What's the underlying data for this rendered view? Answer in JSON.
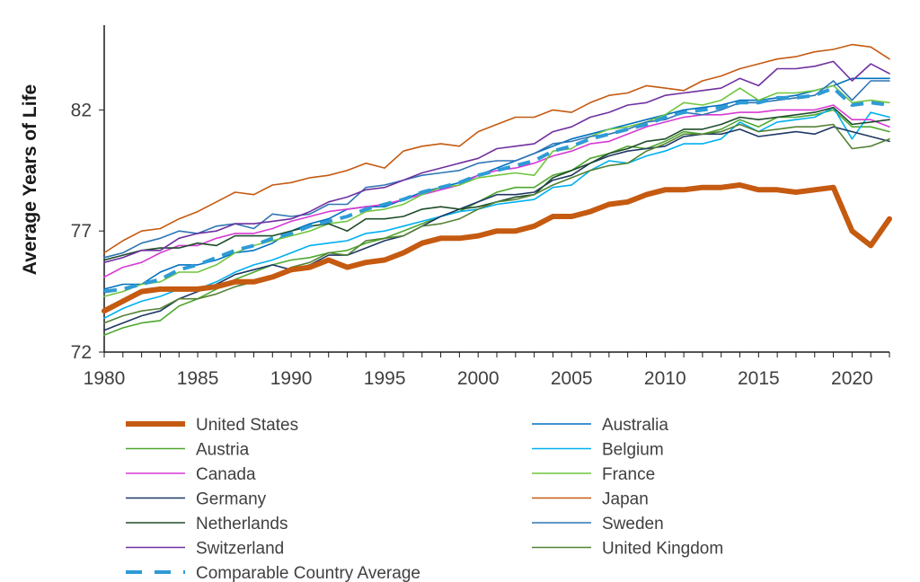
{
  "chart_data": {
    "type": "line",
    "title": "",
    "xlabel": "",
    "ylabel": "Average Years of Life",
    "xlim": [
      1980,
      2022
    ],
    "ylim": [
      72,
      85.5
    ],
    "x_ticks": [
      1980,
      1985,
      1990,
      1995,
      2000,
      2005,
      2010,
      2015,
      2020
    ],
    "y_ticks": [
      72,
      77,
      82
    ],
    "grid": false,
    "legend_position": "bottom",
    "years": [
      1980,
      1981,
      1982,
      1983,
      1984,
      1985,
      1986,
      1987,
      1988,
      1989,
      1990,
      1991,
      1992,
      1993,
      1994,
      1995,
      1996,
      1997,
      1998,
      1999,
      2000,
      2001,
      2002,
      2003,
      2004,
      2005,
      2006,
      2007,
      2008,
      2009,
      2010,
      2011,
      2012,
      2013,
      2014,
      2015,
      2016,
      2017,
      2018,
      2019,
      2020,
      2021,
      2022
    ],
    "series": [
      {
        "name": "United States",
        "color": "#c55a11",
        "width": 6,
        "dash": "",
        "values": [
          73.7,
          74.1,
          74.5,
          74.6,
          74.6,
          74.6,
          74.7,
          74.9,
          74.9,
          75.1,
          75.4,
          75.5,
          75.8,
          75.5,
          75.7,
          75.8,
          76.1,
          76.5,
          76.7,
          76.7,
          76.8,
          77.0,
          77.0,
          77.2,
          77.6,
          77.6,
          77.8,
          78.1,
          78.2,
          78.5,
          78.7,
          78.7,
          78.8,
          78.8,
          78.9,
          78.7,
          78.7,
          78.6,
          78.7,
          78.8,
          77.0,
          76.4,
          77.5
        ]
      },
      {
        "name": "Australia",
        "color": "#0070c0",
        "width": 1.6,
        "dash": "",
        "values": [
          74.6,
          74.8,
          74.8,
          75.3,
          75.6,
          75.6,
          75.8,
          76.1,
          76.2,
          76.5,
          77.0,
          77.3,
          77.5,
          77.9,
          78.0,
          78.0,
          78.3,
          78.6,
          78.8,
          79.0,
          79.3,
          79.6,
          79.9,
          80.2,
          80.5,
          80.8,
          81.0,
          81.2,
          81.4,
          81.6,
          81.8,
          82.0,
          82.1,
          82.2,
          82.4,
          82.4,
          82.5,
          82.6,
          82.8,
          83.0,
          83.3,
          83.3,
          83.3
        ]
      },
      {
        "name": "Austria",
        "color": "#4ea72e",
        "width": 1.6,
        "dash": "",
        "values": [
          72.7,
          73.0,
          73.2,
          73.3,
          73.9,
          74.2,
          74.6,
          75.0,
          75.3,
          75.6,
          75.8,
          75.9,
          76.1,
          76.2,
          76.5,
          76.7,
          77.0,
          77.3,
          77.6,
          77.8,
          78.2,
          78.6,
          78.8,
          78.8,
          79.3,
          79.5,
          80.0,
          80.2,
          80.5,
          80.4,
          80.7,
          81.1,
          81.0,
          81.2,
          81.6,
          81.3,
          81.7,
          81.7,
          81.8,
          82.0,
          81.3,
          81.3,
          81.1
        ]
      },
      {
        "name": "Belgium",
        "color": "#00b0f0",
        "width": 1.6,
        "dash": "",
        "values": [
          73.4,
          73.8,
          74.1,
          74.3,
          74.6,
          74.6,
          74.9,
          75.3,
          75.6,
          75.8,
          76.1,
          76.4,
          76.5,
          76.6,
          76.9,
          77.0,
          77.2,
          77.4,
          77.6,
          77.8,
          77.9,
          78.1,
          78.2,
          78.3,
          78.8,
          78.9,
          79.5,
          79.9,
          79.8,
          80.1,
          80.3,
          80.6,
          80.6,
          80.8,
          81.5,
          81.1,
          81.5,
          81.6,
          81.7,
          82.1,
          80.8,
          81.9,
          81.7
        ]
      },
      {
        "name": "Canada",
        "color": "#d63ad3",
        "width": 1.6,
        "dash": "",
        "values": [
          75.1,
          75.5,
          75.7,
          76.1,
          76.4,
          76.4,
          76.7,
          76.9,
          76.9,
          77.1,
          77.4,
          77.6,
          77.8,
          77.9,
          78.0,
          78.1,
          78.3,
          78.5,
          78.7,
          78.9,
          79.3,
          79.5,
          79.6,
          79.8,
          80.1,
          80.3,
          80.6,
          80.7,
          81.0,
          81.3,
          81.5,
          81.7,
          81.8,
          81.8,
          81.9,
          81.9,
          82.0,
          82.0,
          82.0,
          82.2,
          81.6,
          81.6,
          81.3
        ]
      },
      {
        "name": "France",
        "color": "#70c63f",
        "width": 1.6,
        "dash": "",
        "values": [
          74.3,
          74.5,
          74.8,
          74.9,
          75.3,
          75.3,
          75.6,
          76.1,
          76.4,
          76.6,
          76.8,
          77.0,
          77.3,
          77.4,
          77.8,
          77.9,
          78.1,
          78.5,
          78.8,
          78.9,
          79.2,
          79.3,
          79.4,
          79.3,
          80.3,
          80.4,
          80.9,
          81.2,
          81.3,
          81.5,
          81.8,
          82.3,
          82.2,
          82.4,
          82.9,
          82.4,
          82.7,
          82.7,
          82.8,
          83.0,
          82.3,
          82.4,
          82.3
        ]
      },
      {
        "name": "Germany",
        "color": "#1f3864",
        "width": 1.6,
        "dash": "",
        "values": [
          72.9,
          73.2,
          73.5,
          73.7,
          74.2,
          74.5,
          74.8,
          75.2,
          75.4,
          75.6,
          75.4,
          75.6,
          76.0,
          76.0,
          76.3,
          76.6,
          76.8,
          77.2,
          77.6,
          77.9,
          78.2,
          78.5,
          78.5,
          78.6,
          79.1,
          79.3,
          79.8,
          80.1,
          80.3,
          80.4,
          80.5,
          80.9,
          81.0,
          81.0,
          81.2,
          80.9,
          81.0,
          81.1,
          81.0,
          81.3,
          81.1,
          80.9,
          80.7
        ]
      },
      {
        "name": "Japan",
        "color": "#c55a11",
        "width": 1.6,
        "dash": "",
        "values": [
          76.1,
          76.6,
          77.0,
          77.1,
          77.5,
          77.8,
          78.2,
          78.6,
          78.5,
          78.9,
          79.0,
          79.2,
          79.3,
          79.5,
          79.8,
          79.6,
          80.3,
          80.5,
          80.6,
          80.5,
          81.1,
          81.4,
          81.7,
          81.7,
          82.0,
          81.9,
          82.3,
          82.6,
          82.7,
          83.0,
          82.9,
          82.8,
          83.2,
          83.4,
          83.7,
          83.9,
          84.1,
          84.2,
          84.4,
          84.5,
          84.7,
          84.6,
          84.1
        ]
      },
      {
        "name": "Netherlands",
        "color": "#1e4d2b",
        "width": 1.6,
        "dash": "",
        "values": [
          75.8,
          76.0,
          76.2,
          76.3,
          76.3,
          76.5,
          76.4,
          76.8,
          76.8,
          76.8,
          77.0,
          77.2,
          77.3,
          77.0,
          77.5,
          77.5,
          77.6,
          77.9,
          78.0,
          77.9,
          78.0,
          78.2,
          78.4,
          78.5,
          79.2,
          79.5,
          79.8,
          80.2,
          80.4,
          80.7,
          80.8,
          81.2,
          81.2,
          81.4,
          81.7,
          81.6,
          81.7,
          81.8,
          81.9,
          82.1,
          81.4,
          81.5,
          81.6
        ]
      },
      {
        "name": "Sweden",
        "color": "#2f75b5",
        "width": 1.6,
        "dash": "",
        "values": [
          75.9,
          76.1,
          76.5,
          76.7,
          77.0,
          76.9,
          77.2,
          77.3,
          77.1,
          77.7,
          77.6,
          77.7,
          78.1,
          78.1,
          78.8,
          78.9,
          79.1,
          79.3,
          79.4,
          79.5,
          79.8,
          79.9,
          79.9,
          80.2,
          80.6,
          80.7,
          80.9,
          81.0,
          81.2,
          81.5,
          81.6,
          81.9,
          81.8,
          82.0,
          82.3,
          82.3,
          82.4,
          82.5,
          82.6,
          83.2,
          82.4,
          83.2,
          83.2
        ]
      },
      {
        "name": "Switzerland",
        "color": "#7030a0",
        "width": 1.6,
        "dash": "",
        "values": [
          75.7,
          75.9,
          76.2,
          76.2,
          76.7,
          76.9,
          77.0,
          77.3,
          77.3,
          77.4,
          77.5,
          77.8,
          78.2,
          78.4,
          78.7,
          78.8,
          79.1,
          79.4,
          79.6,
          79.8,
          80.0,
          80.4,
          80.5,
          80.6,
          81.1,
          81.3,
          81.7,
          81.9,
          82.2,
          82.3,
          82.6,
          82.7,
          82.8,
          82.9,
          83.3,
          83.0,
          83.7,
          83.7,
          83.8,
          84.0,
          83.2,
          83.9,
          83.5
        ]
      },
      {
        "name": "United Kingdom",
        "color": "#548235",
        "width": 1.6,
        "dash": "",
        "values": [
          73.2,
          73.5,
          73.7,
          73.8,
          74.2,
          74.2,
          74.4,
          74.7,
          74.9,
          75.1,
          75.5,
          75.7,
          76.1,
          76.0,
          76.6,
          76.7,
          76.8,
          77.2,
          77.3,
          77.5,
          77.9,
          78.2,
          78.3,
          78.5,
          78.9,
          79.2,
          79.5,
          79.7,
          79.8,
          80.3,
          80.6,
          81.0,
          81.0,
          81.1,
          81.4,
          81.1,
          81.2,
          81.3,
          81.3,
          81.4,
          80.4,
          80.5,
          80.8
        ]
      },
      {
        "name": "Comparable Country Average",
        "color": "#2e9bd6",
        "width": 4,
        "dash": "14 9",
        "values": [
          74.5,
          74.6,
          74.8,
          75.0,
          75.4,
          75.6,
          75.9,
          76.2,
          76.4,
          76.7,
          76.9,
          77.2,
          77.4,
          77.6,
          77.9,
          78.1,
          78.3,
          78.6,
          78.8,
          79.0,
          79.3,
          79.5,
          79.7,
          79.9,
          80.3,
          80.5,
          80.8,
          81.0,
          81.2,
          81.4,
          81.7,
          81.9,
          82.0,
          82.1,
          82.3,
          82.3,
          82.5,
          82.5,
          82.6,
          82.9,
          82.2,
          82.3,
          82.2
        ]
      }
    ]
  }
}
